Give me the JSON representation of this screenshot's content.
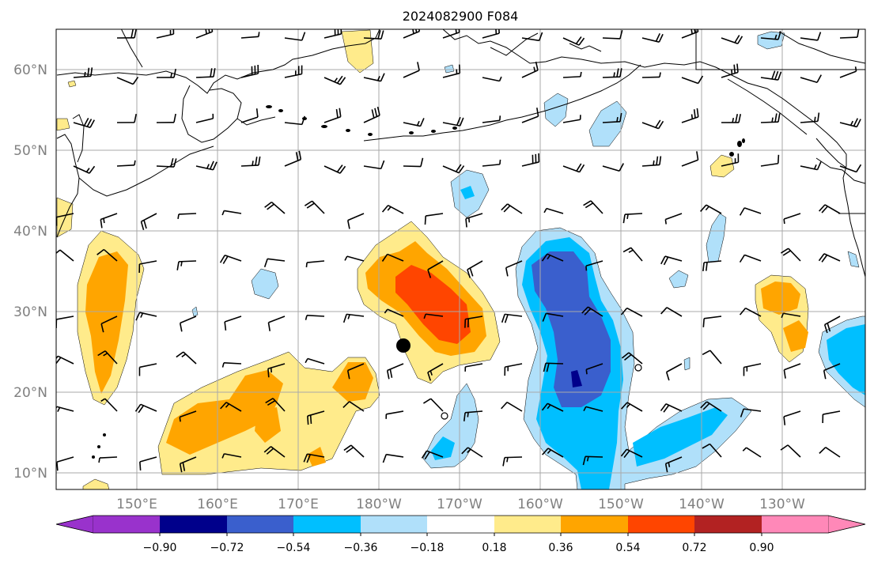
{
  "title": "2024082900 F084",
  "map": {
    "lat_labels": [
      "60°N",
      "50°N",
      "40°N",
      "30°N",
      "20°N",
      "10°N"
    ],
    "lon_labels": [
      "150°E",
      "160°E",
      "170°E",
      "180°W",
      "170°W",
      "160°W",
      "150°W",
      "140°W",
      "130°W"
    ],
    "gridlines": true,
    "station_marker": "filled-circle"
  },
  "colorbar": {
    "tick_labels": [
      "−0.90",
      "−0.72",
      "−0.54",
      "−0.36",
      "−0.18",
      "0.18",
      "0.36",
      "0.54",
      "0.72",
      "0.90"
    ],
    "colors": [
      "#9932cc",
      "#00008b",
      "#3a5fcd",
      "#00bfff",
      "#b0e0fa",
      "#ffffff",
      "#ffeb8b",
      "#ffa500",
      "#ff4500",
      "#b22222",
      "#ff88b8"
    ],
    "extend": "both"
  },
  "colors": {
    "frame": "#000000",
    "grid": "#a9a9a9",
    "coast": "#000000",
    "label": "#808080"
  }
}
